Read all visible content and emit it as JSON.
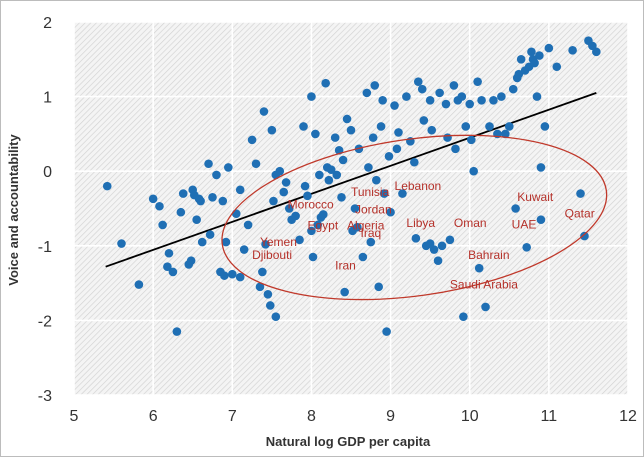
{
  "chart_data": {
    "type": "scatter",
    "xlabel": "Natural log GDP per capita",
    "ylabel": "Voice and accountability",
    "xlim": [
      5,
      12
    ],
    "ylim": [
      -3,
      2
    ],
    "x_ticks": [
      "5",
      "6",
      "7",
      "8",
      "9",
      "10",
      "11",
      "12"
    ],
    "y_ticks": [
      "2",
      "1",
      "0",
      "-1",
      "-2",
      "-3"
    ],
    "grid": true,
    "legend": "none",
    "colors": {
      "points": "#1f6fb4",
      "trend": "#000000",
      "highlight": "#c0392b",
      "labels": "#b5312a",
      "plot_background": "#ededed",
      "grid": "#ffffff"
    },
    "trend_line": {
      "x": [
        5.4,
        11.6
      ],
      "y": [
        -1.28,
        1.05
      ]
    },
    "highlight_ellipse": {
      "center": [
        9.3,
        -0.62
      ],
      "radius_x": 2.45,
      "radius_y": 1.05,
      "angle_deg": -8
    },
    "labels": [
      {
        "text": "Lebanon",
        "x": 9.05,
        "y": -0.25
      },
      {
        "text": "Tunisia",
        "x": 8.5,
        "y": -0.33
      },
      {
        "text": "Morocco",
        "x": 7.7,
        "y": -0.5
      },
      {
        "text": "Jordan",
        "x": 8.55,
        "y": -0.57
      },
      {
        "text": "Egypt",
        "x": 7.95,
        "y": -0.78
      },
      {
        "text": "Algeria",
        "x": 8.45,
        "y": -0.78
      },
      {
        "text": "Iraq",
        "x": 8.62,
        "y": -0.88
      },
      {
        "text": "Libya",
        "x": 9.2,
        "y": -0.75
      },
      {
        "text": "Oman",
        "x": 9.8,
        "y": -0.75
      },
      {
        "text": "Kuwait",
        "x": 10.6,
        "y": -0.4
      },
      {
        "text": "UAE",
        "x": 10.53,
        "y": -0.77
      },
      {
        "text": "Qatar",
        "x": 11.2,
        "y": -0.62
      },
      {
        "text": "Yemen",
        "x": 7.35,
        "y": -1.0
      },
      {
        "text": "Djibouti",
        "x": 7.25,
        "y": -1.18
      },
      {
        "text": "Iran",
        "x": 8.3,
        "y": -1.32
      },
      {
        "text": "Bahrain",
        "x": 9.98,
        "y": -1.18
      },
      {
        "text": "Saudi Arabia",
        "x": 9.75,
        "y": -1.57
      }
    ],
    "points": [
      [
        5.42,
        -0.2
      ],
      [
        5.6,
        -0.97
      ],
      [
        5.82,
        -1.52
      ],
      [
        6.0,
        -0.37
      ],
      [
        6.08,
        -0.47
      ],
      [
        6.12,
        -0.72
      ],
      [
        6.2,
        -1.1
      ],
      [
        6.18,
        -1.28
      ],
      [
        6.25,
        -1.35
      ],
      [
        6.3,
        -2.15
      ],
      [
        6.35,
        -0.55
      ],
      [
        6.38,
        -0.3
      ],
      [
        6.45,
        -1.25
      ],
      [
        6.48,
        -1.2
      ],
      [
        6.5,
        -0.25
      ],
      [
        6.52,
        -0.32
      ],
      [
        6.55,
        -0.65
      ],
      [
        6.58,
        -0.37
      ],
      [
        6.6,
        -0.4
      ],
      [
        6.62,
        -0.95
      ],
      [
        6.7,
        0.1
      ],
      [
        6.72,
        -0.85
      ],
      [
        6.75,
        -0.35
      ],
      [
        6.8,
        -0.05
      ],
      [
        6.85,
        -1.35
      ],
      [
        6.88,
        -0.4
      ],
      [
        6.9,
        -1.4
      ],
      [
        6.92,
        -0.95
      ],
      [
        6.95,
        0.05
      ],
      [
        7.0,
        -1.38
      ],
      [
        7.05,
        -0.57
      ],
      [
        7.1,
        -0.25
      ],
      [
        7.15,
        -1.05
      ],
      [
        7.2,
        -0.72
      ],
      [
        7.25,
        0.42
      ],
      [
        7.3,
        0.1
      ],
      [
        7.35,
        -1.55
      ],
      [
        7.38,
        -1.35
      ],
      [
        7.4,
        0.8
      ],
      [
        7.42,
        -0.98
      ],
      [
        7.45,
        -1.65
      ],
      [
        7.48,
        -1.8
      ],
      [
        7.5,
        0.55
      ],
      [
        7.52,
        -0.4
      ],
      [
        7.55,
        -1.95
      ],
      [
        7.55,
        -0.05
      ],
      [
        7.6,
        0.0
      ],
      [
        7.65,
        -0.28
      ],
      [
        7.68,
        -0.15
      ],
      [
        7.72,
        -0.5
      ],
      [
        7.75,
        -0.65
      ],
      [
        7.8,
        -0.6
      ],
      [
        7.85,
        -0.92
      ],
      [
        7.9,
        0.6
      ],
      [
        7.92,
        -0.2
      ],
      [
        7.95,
        -0.33
      ],
      [
        8.0,
        1.0
      ],
      [
        8.02,
        -1.15
      ],
      [
        8.05,
        0.5
      ],
      [
        8.08,
        -0.72
      ],
      [
        8.1,
        -0.05
      ],
      [
        8.12,
        -0.62
      ],
      [
        8.15,
        -0.58
      ],
      [
        8.18,
        1.18
      ],
      [
        8.2,
        0.05
      ],
      [
        8.22,
        -0.12
      ],
      [
        8.25,
        0.02
      ],
      [
        8.3,
        0.45
      ],
      [
        8.32,
        -0.05
      ],
      [
        8.35,
        0.28
      ],
      [
        8.38,
        -0.35
      ],
      [
        8.4,
        0.15
      ],
      [
        8.42,
        -1.62
      ],
      [
        8.45,
        0.7
      ],
      [
        8.5,
        0.55
      ],
      [
        8.52,
        -0.8
      ],
      [
        8.55,
        -0.5
      ],
      [
        8.58,
        -0.75
      ],
      [
        8.6,
        0.3
      ],
      [
        8.65,
        -1.15
      ],
      [
        8.7,
        1.05
      ],
      [
        8.72,
        0.05
      ],
      [
        8.75,
        -0.95
      ],
      [
        8.78,
        0.45
      ],
      [
        8.8,
        1.15
      ],
      [
        8.82,
        -0.12
      ],
      [
        8.85,
        -1.55
      ],
      [
        8.88,
        0.6
      ],
      [
        8.9,
        0.95
      ],
      [
        8.92,
        -0.3
      ],
      [
        8.95,
        -2.15
      ],
      [
        8.98,
        0.2
      ],
      [
        9.0,
        -0.55
      ],
      [
        9.05,
        0.88
      ],
      [
        9.08,
        0.3
      ],
      [
        9.1,
        0.52
      ],
      [
        9.15,
        -0.3
      ],
      [
        9.2,
        1.0
      ],
      [
        9.25,
        0.4
      ],
      [
        9.3,
        0.12
      ],
      [
        9.32,
        -0.9
      ],
      [
        9.35,
        1.2
      ],
      [
        9.4,
        1.1
      ],
      [
        9.42,
        0.68
      ],
      [
        9.45,
        -1.0
      ],
      [
        9.5,
        0.95
      ],
      [
        9.52,
        0.55
      ],
      [
        9.55,
        -1.05
      ],
      [
        9.6,
        -1.2
      ],
      [
        9.62,
        1.05
      ],
      [
        9.65,
        -1.0
      ],
      [
        9.7,
        0.9
      ],
      [
        9.72,
        0.45
      ],
      [
        9.75,
        -0.92
      ],
      [
        9.8,
        1.15
      ],
      [
        9.82,
        0.3
      ],
      [
        9.85,
        0.95
      ],
      [
        9.9,
        1.0
      ],
      [
        9.92,
        -1.95
      ],
      [
        9.95,
        0.6
      ],
      [
        10.0,
        0.9
      ],
      [
        10.02,
        0.42
      ],
      [
        10.05,
        0.0
      ],
      [
        10.1,
        1.2
      ],
      [
        10.12,
        -1.3
      ],
      [
        10.15,
        0.95
      ],
      [
        10.2,
        -1.82
      ],
      [
        10.25,
        0.6
      ],
      [
        10.3,
        0.95
      ],
      [
        10.35,
        0.5
      ],
      [
        10.4,
        1.0
      ],
      [
        10.45,
        0.5
      ],
      [
        10.5,
        0.6
      ],
      [
        10.55,
        1.1
      ],
      [
        10.58,
        -0.5
      ],
      [
        10.6,
        1.25
      ],
      [
        10.62,
        1.3
      ],
      [
        10.65,
        1.5
      ],
      [
        10.7,
        1.35
      ],
      [
        10.72,
        -1.02
      ],
      [
        10.75,
        1.4
      ],
      [
        10.78,
        1.6
      ],
      [
        10.8,
        1.5
      ],
      [
        10.82,
        1.45
      ],
      [
        10.85,
        1.0
      ],
      [
        10.88,
        1.55
      ],
      [
        10.9,
        0.05
      ],
      [
        10.95,
        0.6
      ],
      [
        11.0,
        1.65
      ],
      [
        11.1,
        1.4
      ],
      [
        11.3,
        1.62
      ],
      [
        11.4,
        -0.3
      ],
      [
        11.45,
        -0.87
      ],
      [
        11.5,
        1.75
      ],
      [
        11.6,
        1.6
      ],
      [
        11.55,
        1.68
      ],
      [
        10.9,
        -0.65
      ],
      [
        9.5,
        -0.97
      ],
      [
        8.0,
        -0.8
      ],
      [
        7.1,
        -1.42
      ]
    ]
  }
}
